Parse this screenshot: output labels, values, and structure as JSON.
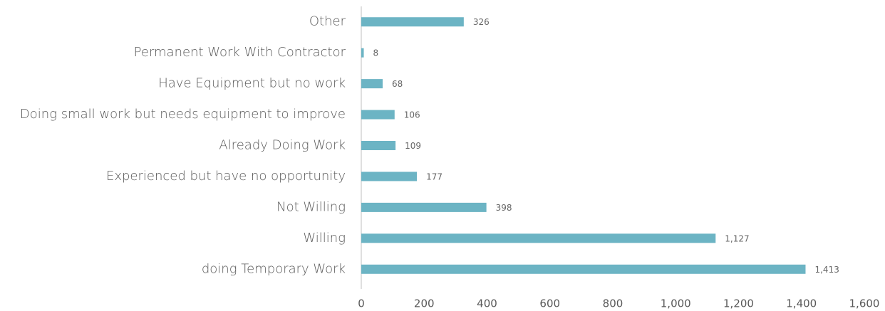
{
  "chart_data": {
    "type": "bar",
    "orientation": "horizontal",
    "categories": [
      "Other",
      "Permanent Work With Contractor",
      "Have Equipment but no work",
      "Doing small work but needs equipment to improve",
      "Already Doing Work",
      "Experienced but have no opportunity",
      "Not Willing",
      "Willing",
      "doing Temporary Work"
    ],
    "values": [
      326,
      8,
      68,
      106,
      109,
      177,
      398,
      1127,
      1413
    ],
    "value_labels": [
      "326",
      "8",
      "68",
      "106",
      "109",
      "177",
      "398",
      "1,127",
      "1,413"
    ],
    "color": "#6cb4c4",
    "xlim": [
      0,
      1600
    ],
    "xticks": [
      0,
      200,
      400,
      600,
      800,
      {
        "value": 1000,
        "label": "1,000"
      },
      {
        "value": 1200,
        "label": "1,200"
      },
      {
        "value": 1400,
        "label": "1,400"
      },
      {
        "value": 1600,
        "label": "1,600"
      }
    ],
    "grid": false
  }
}
